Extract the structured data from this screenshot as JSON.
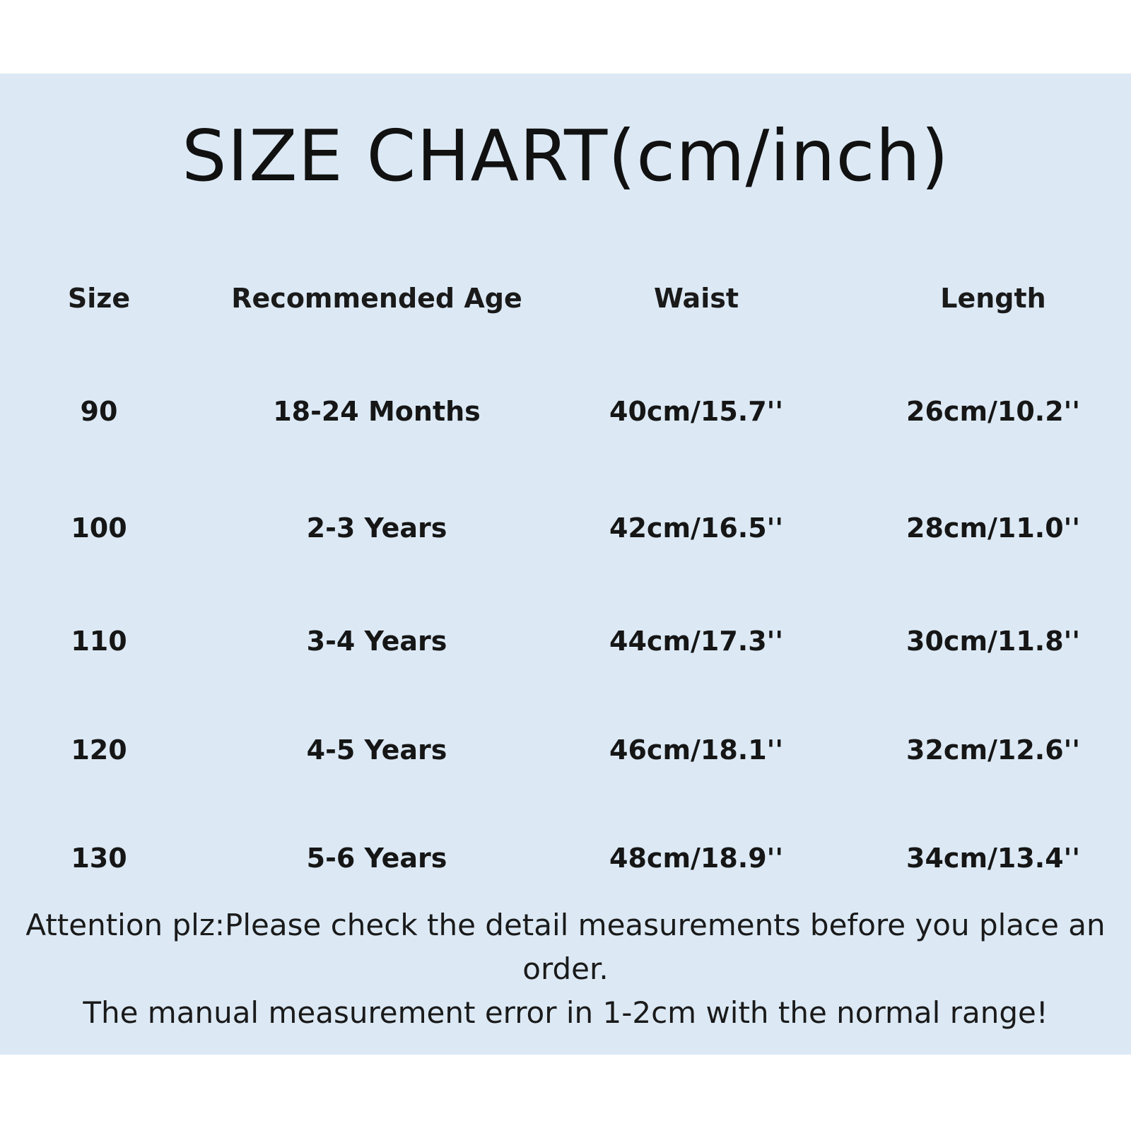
{
  "title": "SIZE CHART(cm/inch)",
  "table": {
    "headers": {
      "size": "Size",
      "age": "Recommended Age",
      "waist": "Waist",
      "length": "Length"
    },
    "rows": [
      {
        "size": "90",
        "age": "18-24 Months",
        "waist": "40cm/15.7''",
        "length": "26cm/10.2''"
      },
      {
        "size": "100",
        "age": "2-3 Years",
        "waist": "42cm/16.5''",
        "length": "28cm/11.0''"
      },
      {
        "size": "110",
        "age": "3-4 Years",
        "waist": "44cm/17.3''",
        "length": "30cm/11.8''"
      },
      {
        "size": "120",
        "age": "4-5 Years",
        "waist": "46cm/18.1''",
        "length": "32cm/12.6''"
      },
      {
        "size": "130",
        "age": "5-6 Years",
        "waist": "48cm/18.9''",
        "length": "34cm/13.4''"
      }
    ]
  },
  "notes": {
    "attention": "Attention plz:Please check the detail measurements before you place an order.",
    "error": "The manual measurement error in 1-2cm with the normal range!"
  },
  "colors": {
    "panel_background": "#dce9f5",
    "page_background": "#ffffff",
    "text": "#141414"
  }
}
